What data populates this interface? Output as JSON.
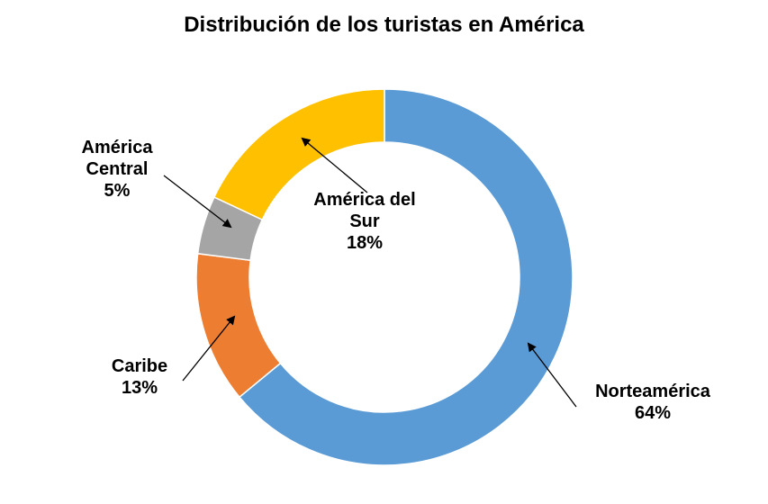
{
  "chart_data": {
    "type": "pie",
    "variant": "donut",
    "title": "Distribución de los turistas en América",
    "slices": [
      {
        "label_lines": [
          "Norteamérica"
        ],
        "value": 64,
        "value_label": "64%",
        "color": "#5B9BD5"
      },
      {
        "label_lines": [
          "Caribe"
        ],
        "value": 13,
        "value_label": "13%",
        "color": "#ED7D31"
      },
      {
        "label_lines": [
          "América",
          "Central"
        ],
        "value": 5,
        "value_label": "5%",
        "color": "#A5A5A5"
      },
      {
        "label_lines": [
          "América del",
          "Sur"
        ],
        "value": 18,
        "value_label": "18%",
        "color": "#FFC000"
      }
    ],
    "legend": "none",
    "start_angle": "12 o'clock",
    "direction": "clockwise"
  }
}
